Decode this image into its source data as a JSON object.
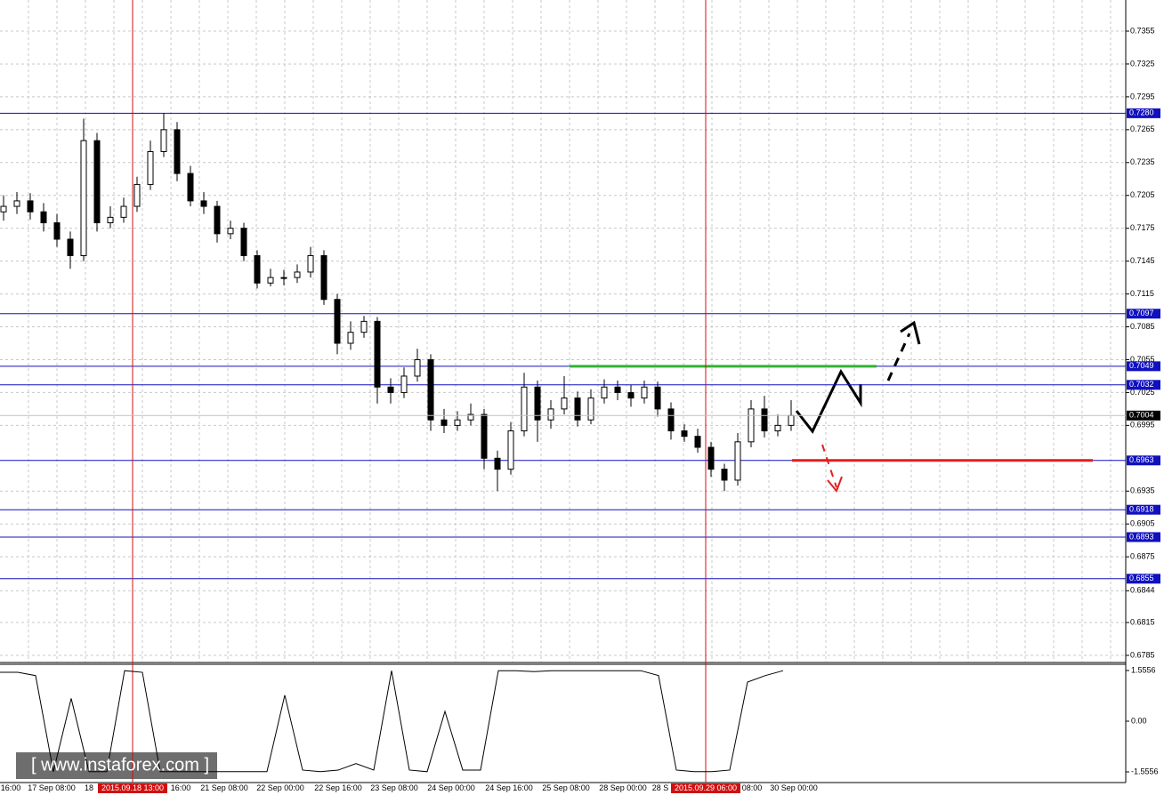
{
  "chart_data": {
    "type": "candlestick",
    "open": [
      0.719,
      0.7195,
      0.72,
      0.719,
      0.718,
      0.7165,
      0.715,
      0.7255,
      0.718,
      0.7185,
      0.7195,
      0.7215,
      0.7245,
      0.7265,
      0.7225,
      0.72,
      0.7195,
      0.717,
      0.7175,
      0.715,
      0.7125,
      0.713,
      0.713,
      0.7135,
      0.715,
      0.711,
      0.707,
      0.708,
      0.709,
      0.703,
      0.7025,
      0.704,
      0.7055,
      0.7,
      0.6995,
      0.7,
      0.7005,
      0.6965,
      0.6955,
      0.699,
      0.703,
      0.7,
      0.701,
      0.702,
      0.7,
      0.702,
      0.703,
      0.7025,
      0.702,
      0.703,
      0.701,
      0.699,
      0.6985,
      0.6975,
      0.6955,
      0.6945,
      0.698,
      0.701,
      0.699,
      0.6995
    ],
    "high": [
      0.7205,
      0.7208,
      0.7207,
      0.7198,
      0.7188,
      0.7172,
      0.7275,
      0.7262,
      0.7195,
      0.7203,
      0.7222,
      0.7255,
      0.728,
      0.7272,
      0.7232,
      0.7208,
      0.72,
      0.7182,
      0.718,
      0.7155,
      0.7138,
      0.7137,
      0.7142,
      0.7158,
      0.7155,
      0.7115,
      0.709,
      0.7095,
      0.7094,
      0.7038,
      0.7048,
      0.7065,
      0.706,
      0.701,
      0.7008,
      0.7015,
      0.701,
      0.6972,
      0.6998,
      0.7043,
      0.7036,
      0.7018,
      0.704,
      0.7026,
      0.7028,
      0.7037,
      0.7036,
      0.7032,
      0.7036,
      0.7035,
      0.7016,
      0.6996,
      0.6992,
      0.698,
      0.696,
      0.6988,
      0.7018,
      0.7022,
      0.7005,
      0.7018
    ],
    "low": [
      0.7182,
      0.7188,
      0.7183,
      0.7172,
      0.7158,
      0.7138,
      0.7145,
      0.7172,
      0.7175,
      0.718,
      0.719,
      0.721,
      0.724,
      0.7218,
      0.7195,
      0.7188,
      0.7162,
      0.7165,
      0.7145,
      0.712,
      0.7122,
      0.7123,
      0.7125,
      0.713,
      0.7105,
      0.706,
      0.7064,
      0.7075,
      0.7015,
      0.7015,
      0.702,
      0.7035,
      0.699,
      0.6988,
      0.699,
      0.6995,
      0.6955,
      0.6935,
      0.695,
      0.6985,
      0.698,
      0.6992,
      0.7005,
      0.6994,
      0.6996,
      0.7015,
      0.7018,
      0.7012,
      0.7015,
      0.7003,
      0.6982,
      0.698,
      0.697,
      0.6948,
      0.6935,
      0.694,
      0.6975,
      0.6984,
      0.6985,
      0.699
    ],
    "close": [
      0.7195,
      0.72,
      0.719,
      0.718,
      0.7165,
      0.715,
      0.7255,
      0.718,
      0.7185,
      0.7195,
      0.7215,
      0.7245,
      0.7265,
      0.7225,
      0.72,
      0.7195,
      0.717,
      0.7175,
      0.715,
      0.7125,
      0.713,
      0.713,
      0.7135,
      0.715,
      0.711,
      0.707,
      0.708,
      0.709,
      0.703,
      0.7025,
      0.704,
      0.7055,
      0.7,
      0.6995,
      0.7,
      0.7005,
      0.6965,
      0.6955,
      0.699,
      0.703,
      0.7,
      0.701,
      0.702,
      0.7,
      0.702,
      0.703,
      0.7025,
      0.702,
      0.703,
      0.701,
      0.699,
      0.6985,
      0.6975,
      0.6955,
      0.6945,
      0.698,
      0.701,
      0.699,
      0.6995,
      0.7004
    ],
    "ylim": [
      0.6785,
      0.7355
    ],
    "yticks": [
      0.7355,
      0.7325,
      0.7295,
      0.7265,
      0.7235,
      0.7205,
      0.7175,
      0.7145,
      0.7115,
      0.7085,
      0.7055,
      0.7025,
      0.6995,
      0.6935,
      0.6905,
      0.6875,
      0.6844,
      0.6815,
      0.6785
    ],
    "levels": [
      {
        "value": 0.728,
        "label": "0.7280"
      },
      0.7097,
      0.7049,
      0.7032,
      0.6963,
      0.6918,
      0.6893,
      0.6855
    ],
    "current_price": 0.7004,
    "support": 0.6963,
    "resistance": 0.7049,
    "x_labels": [
      "16:00",
      "17 Sep 08:00",
      "18",
      "16:00",
      "21 Sep 08:00",
      "22 Sep 00:00",
      "22 Sep 16:00",
      "23 Sep 08:00",
      "24 Sep 00:00",
      "24 Sep 16:00",
      "25 Sep 08:00",
      "28 Sep 00:00",
      "28 S",
      "08:00",
      "30 Sep 00:00"
    ],
    "markers": [
      "2015.09.18 13:00",
      "2015.09.29 06:00"
    ],
    "indicator": {
      "values": [
        1.5,
        1.5,
        1.4,
        -1.55,
        0.7,
        -1.55,
        -1.55,
        1.55,
        1.5,
        -1.55,
        -1.55,
        -1.55,
        -1.55,
        -1.55,
        -1.55,
        -1.55,
        0.8,
        -1.5,
        -1.55,
        -1.5,
        -1.3,
        -1.5,
        1.55,
        -1.5,
        -1.55,
        0.3,
        -1.5,
        -1.5,
        1.55,
        1.55,
        1.52,
        1.55,
        1.55,
        1.55,
        1.55,
        1.55,
        1.55,
        1.4,
        -1.5,
        -1.55,
        -1.55,
        -1.5,
        1.2,
        1.4,
        1.55
      ],
      "ylim": [
        -1.5556,
        1.5556
      ],
      "yticks": [
        1.5556,
        {
          "value": 0,
          "label": "0.00"
        },
        -1.5556
      ]
    },
    "watermark": "[ www.instaforex.com ]"
  }
}
